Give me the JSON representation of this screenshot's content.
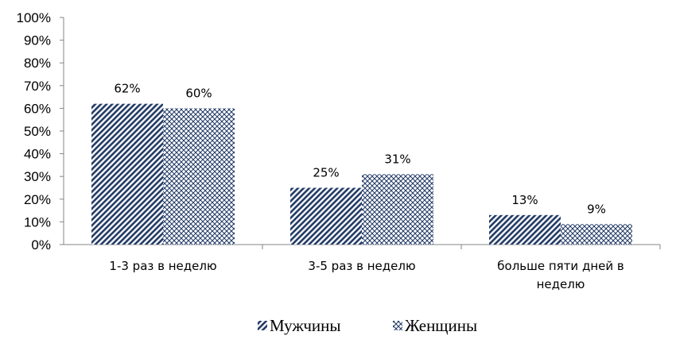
{
  "chart_data": {
    "type": "bar",
    "categories": [
      [
        "1-3 раз в неделю"
      ],
      [
        "3-5 раз в неделю"
      ],
      [
        "больше пяти дней в",
        "неделю"
      ]
    ],
    "series": [
      {
        "name": "Мужчины",
        "values": [
          62,
          25,
          13
        ],
        "labels": [
          "62%",
          "25%",
          "13%"
        ],
        "pattern": "diagonal-stripes"
      },
      {
        "name": "Женщины",
        "values": [
          60,
          31,
          9
        ],
        "labels": [
          "60%",
          "31%",
          "9%"
        ],
        "pattern": "crosshatch"
      }
    ],
    "y_ticks": [
      "0%",
      "10%",
      "20%",
      "30%",
      "40%",
      "50%",
      "60%",
      "70%",
      "80%",
      "90%",
      "100%"
    ],
    "ylim": [
      0,
      100
    ],
    "grid": false,
    "legend_position": "bottom",
    "colors": {
      "series": "#1f3864",
      "axis": "#868686"
    }
  }
}
